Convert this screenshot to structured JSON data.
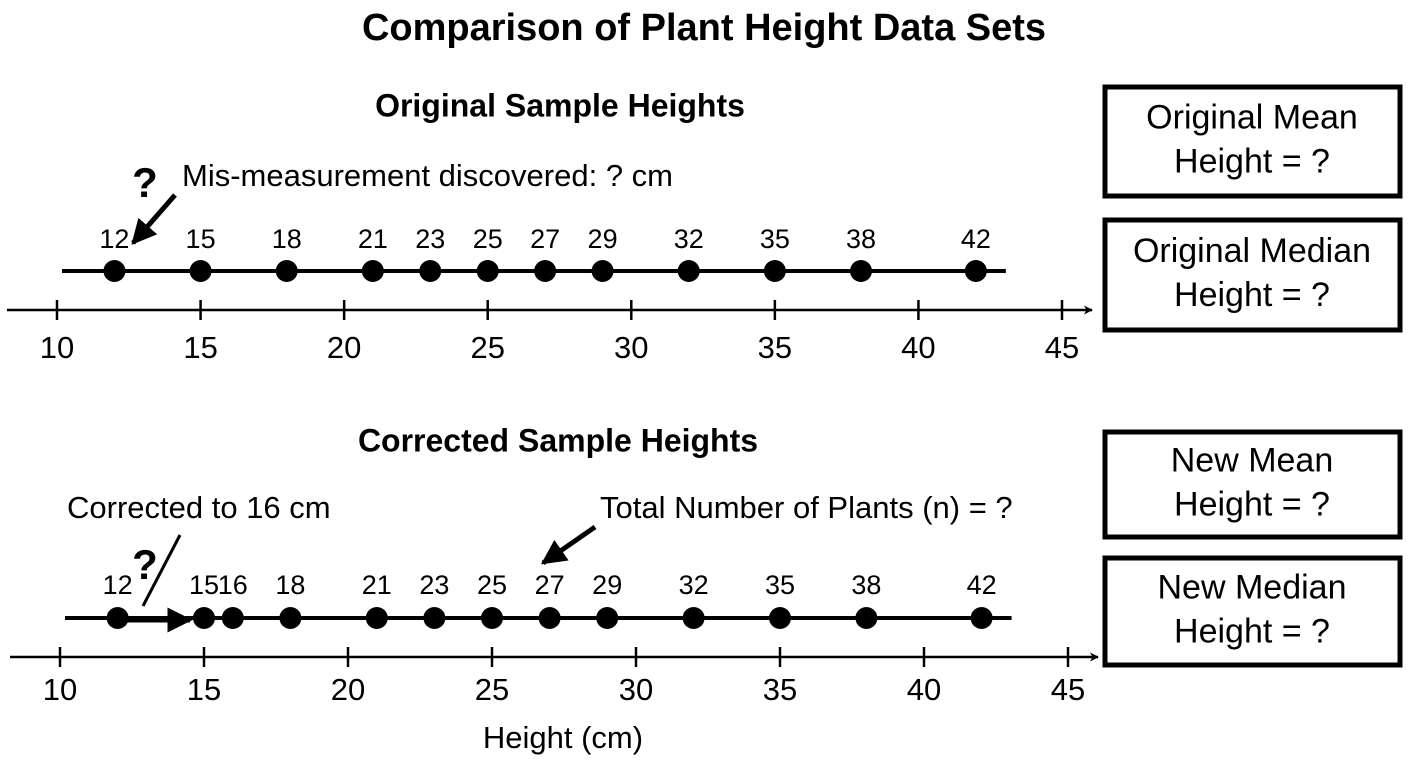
{
  "title": "Comparison of Plant Height Data Sets",
  "chart_data": [
    {
      "type": "dot",
      "title": "Original Sample Heights",
      "x": [
        12,
        15,
        18,
        21,
        23,
        25,
        27,
        29,
        32,
        35,
        38,
        42
      ],
      "xlim": [
        10,
        45
      ],
      "xticks": [
        10,
        15,
        20,
        25,
        30,
        35,
        40,
        45
      ],
      "color": "#000000",
      "annotations": [
        "?",
        "Mis-measurement discovered: ? cm"
      ]
    },
    {
      "type": "dot",
      "title": "Corrected Sample Heights",
      "x": [
        12,
        15,
        16,
        18,
        21,
        23,
        25,
        27,
        29,
        32,
        35,
        38,
        42
      ],
      "xlim": [
        10,
        45
      ],
      "xticks": [
        10,
        15,
        20,
        25,
        30,
        35,
        40,
        45
      ],
      "color": "#000000",
      "xlabel": "Height (cm)",
      "annotations": [
        "Corrected to 16 cm",
        "?",
        "Total Number of Plants (n) = ?"
      ]
    }
  ],
  "boxes": [
    [
      "Original Mean",
      "Height = ?"
    ],
    [
      "Original Median",
      "Height = ?"
    ],
    [
      "New Mean",
      "Height = ?"
    ],
    [
      "New Median",
      "Height = ?"
    ]
  ]
}
